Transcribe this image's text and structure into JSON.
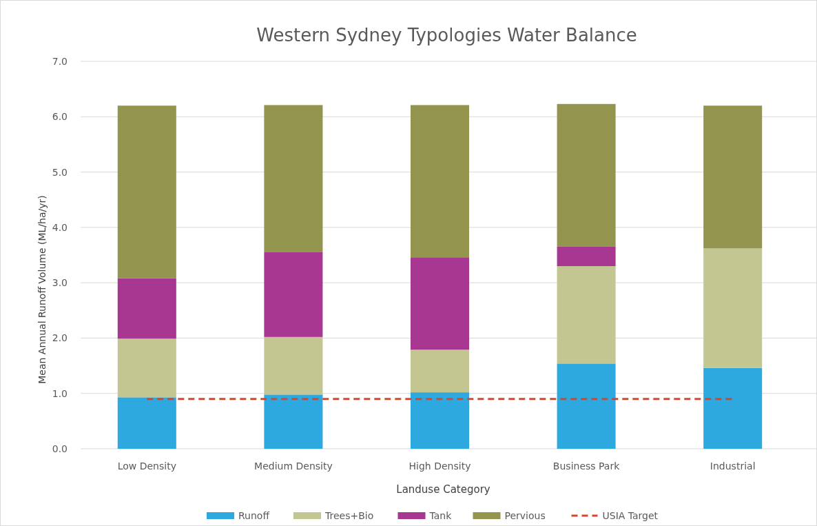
{
  "chart_data": {
    "type": "bar",
    "title": "Western Sydney Typologies Water Balance",
    "xlabel": "Landuse Category",
    "ylabel": "Mean Annual Runoff Volume (ML/ha/yr)",
    "categories": [
      "Low Density",
      "Medium Density",
      "High Density",
      "Business Park",
      "Industrial"
    ],
    "stacked": true,
    "series": [
      {
        "name": "Runoff",
        "color": "#2ea9e0",
        "values": [
          0.93,
          0.98,
          1.02,
          1.54,
          1.46
        ]
      },
      {
        "name": "Trees+Bio",
        "color": "#c3c690",
        "values": [
          1.06,
          1.04,
          0.77,
          1.76,
          2.16
        ]
      },
      {
        "name": "Tank",
        "color": "#a83792",
        "values": [
          1.09,
          1.53,
          1.67,
          0.35,
          0
        ]
      },
      {
        "name": "Pervious",
        "color": "#93944e",
        "values": [
          3.12,
          2.66,
          2.75,
          2.58,
          2.58
        ]
      },
      {
        "name": "USIA Target",
        "color": "#d9452b",
        "type": "line",
        "line_style": "dashed",
        "values": [
          0.9,
          0.9,
          0.9,
          0.9,
          0.9
        ]
      }
    ],
    "ylim": [
      0,
      7
    ],
    "yticks": [
      {
        "value": 0,
        "label": "0.0"
      },
      {
        "value": 1,
        "label": "1.0"
      },
      {
        "value": 2,
        "label": "2.0"
      },
      {
        "value": 3,
        "label": "3.0"
      },
      {
        "value": 4,
        "label": "4.0"
      },
      {
        "value": 5,
        "label": "5.0"
      },
      {
        "value": 6,
        "label": "6.0"
      },
      {
        "value": 7,
        "label": "7.0"
      }
    ],
    "grid": "y",
    "legend": "bottom"
  }
}
